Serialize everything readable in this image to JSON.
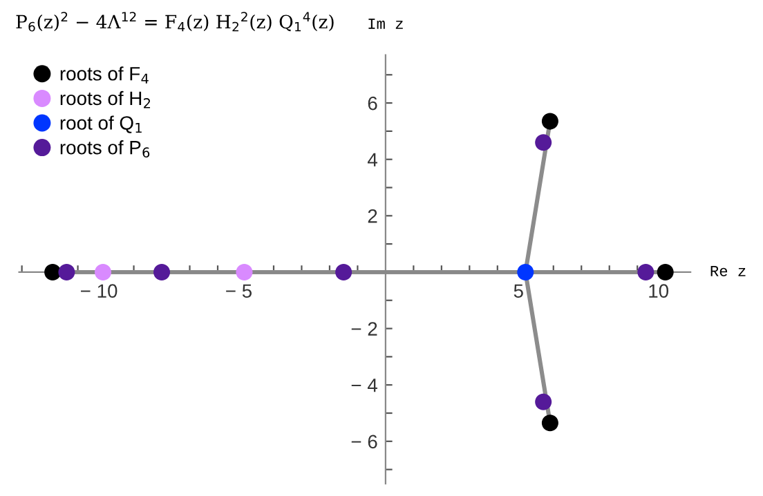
{
  "chart_data": {
    "type": "scatter",
    "title": "P$_{6}$(z)$^{2}$ − 4Λ$^{12}$ = F$_{4}$(z) H$_{2}$$^{2}$(z) Q$_{1}$$^{4}$(z)",
    "xlabel": "Re z",
    "ylabel": "Im z",
    "series": [
      {
        "type": "line",
        "marker": "none",
        "color": "#8c8c8c",
        "x": [
          -11.9,
          10.0
        ],
        "values": [
          0,
          0
        ]
      },
      {
        "type": "line",
        "marker": "none",
        "color": "#8c8c8c",
        "x": [
          5.88,
          5.0,
          5.88
        ],
        "values": [
          5.35,
          0,
          -5.35
        ]
      },
      {
        "name": "roots of F$_{4}$",
        "color": "#000000",
        "x": [
          -11.9,
          10.0,
          5.88,
          5.88
        ],
        "values": [
          0,
          0,
          5.35,
          -5.35
        ]
      },
      {
        "name": "roots of H$_{2}$",
        "color": "#d98aff",
        "x": [
          -10.1,
          -5.05
        ],
        "values": [
          0,
          0
        ]
      },
      {
        "name": "root of Q$_{1}$",
        "color": "#0036ff",
        "x": [
          5.0
        ],
        "values": [
          0
        ]
      },
      {
        "name": "roots of P$_{6}$",
        "color": "#551a99",
        "marker": "circle",
        "x": [
          -11.4,
          -8.0,
          -1.5,
          9.3,
          5.64,
          5.64
        ],
        "values": [
          0,
          0,
          0,
          0,
          4.6,
          -4.6
        ]
      }
    ],
    "marker": "circle",
    "legend": "top left",
    "grid": false,
    "xlim": [
      -13.1,
      10.9
    ],
    "ylim": [
      -7.5,
      7.7
    ],
    "xticks": [
      {
        "value": -13,
        "label": null
      },
      {
        "value": -12,
        "label": null
      },
      {
        "value": -11,
        "label": null
      },
      {
        "value": -10,
        "label": "− 10"
      },
      {
        "value": -9,
        "label": null
      },
      {
        "value": -8,
        "label": null
      },
      {
        "value": -7,
        "label": null
      },
      {
        "value": -6,
        "label": null
      },
      {
        "value": -5,
        "label": "− 5"
      },
      {
        "value": -4,
        "label": null
      },
      {
        "value": -3,
        "label": null
      },
      {
        "value": -2,
        "label": null
      },
      {
        "value": -1,
        "label": null
      },
      {
        "value": 1,
        "label": null
      },
      {
        "value": 2,
        "label": null
      },
      {
        "value": 3,
        "label": null
      },
      {
        "value": 4,
        "label": null
      },
      5,
      {
        "value": 6,
        "label": null
      },
      {
        "value": 7,
        "label": null
      },
      {
        "value": 8,
        "label": null
      },
      {
        "value": 9,
        "label": null
      },
      10
    ],
    "yticks": [
      {
        "value": -7,
        "label": null
      },
      {
        "value": -6,
        "label": "− 6"
      },
      {
        "value": -5,
        "label": null
      },
      {
        "value": -4,
        "label": "− 4"
      },
      {
        "value": -3,
        "label": null
      },
      {
        "value": -2,
        "label": "− 2"
      },
      {
        "value": -1,
        "label": null
      },
      {
        "value": 1,
        "label": null
      },
      2,
      {
        "value": 3,
        "label": null
      },
      4,
      {
        "value": 5,
        "label": null
      },
      6,
      {
        "value": 7,
        "label": null
      }
    ]
  }
}
